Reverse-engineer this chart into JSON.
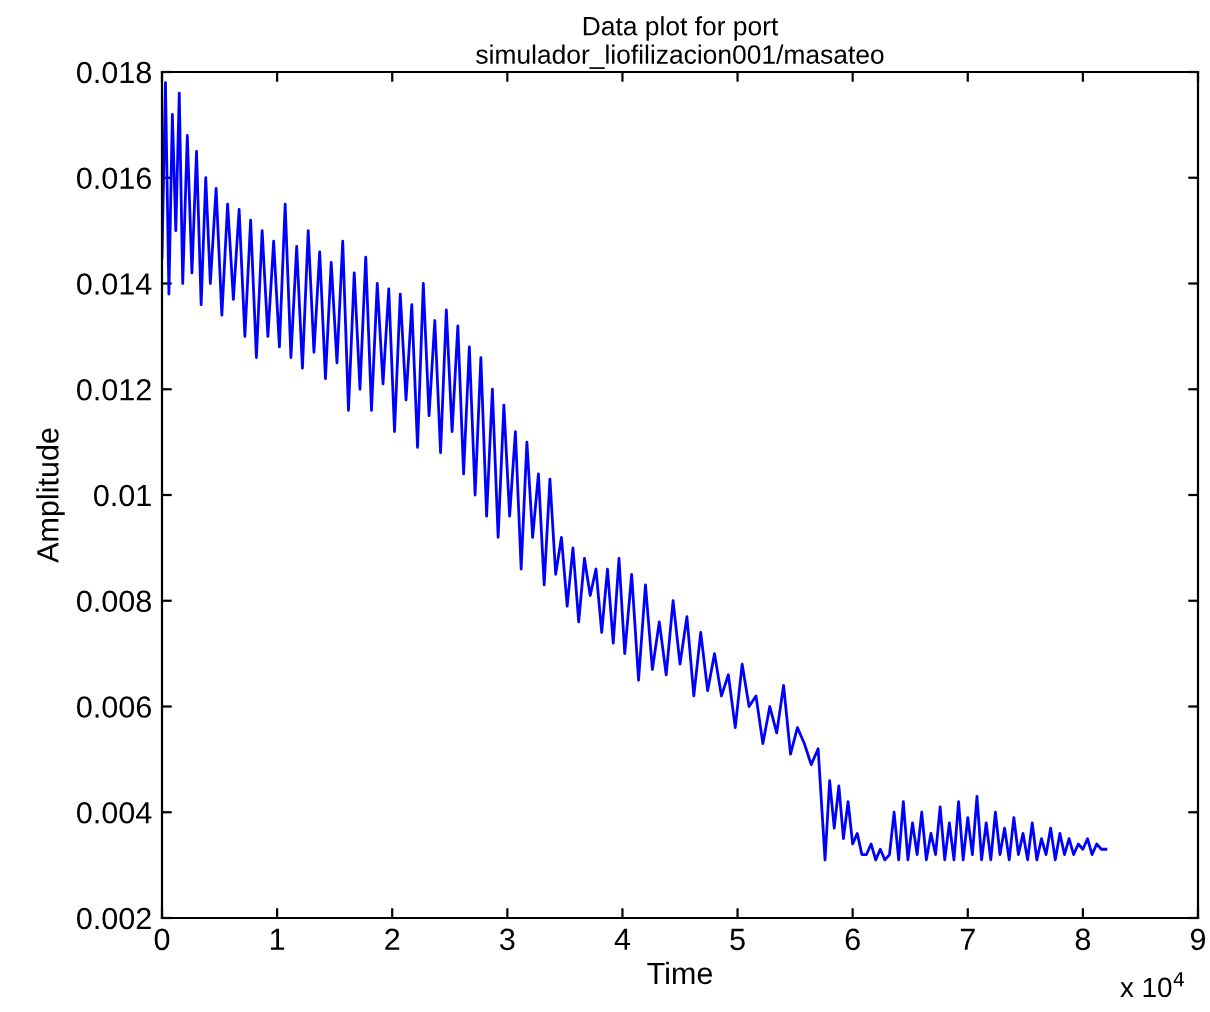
{
  "chart_data": {
    "type": "line",
    "title": "Data plot for port\nsimulador_liofilizacion001/masateo",
    "xlabel": "Time",
    "ylabel": "Amplitude",
    "annotations": [
      "x 10$^{4}$"
    ],
    "x": [
      0,
      0.03,
      0.06,
      0.09,
      0.12,
      0.15,
      0.18,
      0.22,
      0.26,
      0.3,
      0.34,
      0.38,
      0.42,
      0.47,
      0.52,
      0.57,
      0.62,
      0.67,
      0.72,
      0.77,
      0.82,
      0.87,
      0.92,
      0.97,
      1.02,
      1.07,
      1.12,
      1.17,
      1.22,
      1.27,
      1.32,
      1.37,
      1.42,
      1.47,
      1.52,
      1.57,
      1.62,
      1.67,
      1.72,
      1.77,
      1.82,
      1.87,
      1.92,
      1.97,
      2.02,
      2.07,
      2.12,
      2.17,
      2.22,
      2.27,
      2.32,
      2.37,
      2.42,
      2.47,
      2.52,
      2.57,
      2.62,
      2.67,
      2.72,
      2.77,
      2.82,
      2.87,
      2.92,
      2.97,
      3.02,
      3.07,
      3.12,
      3.17,
      3.22,
      3.27,
      3.32,
      3.37,
      3.42,
      3.47,
      3.52,
      3.57,
      3.62,
      3.67,
      3.72,
      3.77,
      3.82,
      3.87,
      3.92,
      3.97,
      4.02,
      4.08,
      4.14,
      4.2,
      4.26,
      4.32,
      4.38,
      4.44,
      4.5,
      4.56,
      4.62,
      4.68,
      4.74,
      4.8,
      4.86,
      4.92,
      4.98,
      5.04,
      5.1,
      5.16,
      5.22,
      5.28,
      5.34,
      5.4,
      5.46,
      5.52,
      5.58,
      5.64,
      5.7,
      5.76,
      5.8,
      5.84,
      5.88,
      5.92,
      5.96,
      6,
      6.04,
      6.08,
      6.12,
      6.16,
      6.2,
      6.24,
      6.28,
      6.32,
      6.36,
      6.4,
      6.44,
      6.48,
      6.52,
      6.56,
      6.6,
      6.64,
      6.68,
      6.72,
      6.76,
      6.8,
      6.84,
      6.88,
      6.92,
      6.96,
      7,
      7.04,
      7.08,
      7.12,
      7.16,
      7.2,
      7.24,
      7.28,
      7.32,
      7.36,
      7.4,
      7.44,
      7.48,
      7.52,
      7.56,
      7.6,
      7.64,
      7.68,
      7.72,
      7.76,
      7.8,
      7.84,
      7.88,
      7.92,
      7.96,
      8,
      8.04,
      8.08,
      8.12,
      8.16,
      8.2
    ],
    "series": [
      {
        "color": "#0000ff",
        "values": [
          0.0145,
          0.0178,
          0.0138,
          0.0172,
          0.015,
          0.0176,
          0.014,
          0.0168,
          0.0142,
          0.0165,
          0.0136,
          0.016,
          0.014,
          0.0158,
          0.0134,
          0.0155,
          0.0137,
          0.0154,
          0.013,
          0.0152,
          0.0126,
          0.015,
          0.013,
          0.0148,
          0.0128,
          0.0155,
          0.0126,
          0.0147,
          0.0124,
          0.015,
          0.0127,
          0.0146,
          0.0122,
          0.0144,
          0.0125,
          0.0148,
          0.0116,
          0.0142,
          0.012,
          0.0145,
          0.0116,
          0.014,
          0.0121,
          0.0139,
          0.0112,
          0.0138,
          0.0118,
          0.0136,
          0.0109,
          0.014,
          0.0115,
          0.0133,
          0.0108,
          0.0135,
          0.0112,
          0.0132,
          0.0104,
          0.0128,
          0.01,
          0.0126,
          0.0096,
          0.012,
          0.0092,
          0.0117,
          0.0096,
          0.0112,
          0.0086,
          0.011,
          0.0092,
          0.0104,
          0.0083,
          0.0103,
          0.0085,
          0.0092,
          0.0079,
          0.009,
          0.0076,
          0.0088,
          0.0081,
          0.0086,
          0.0074,
          0.0086,
          0.0072,
          0.0088,
          0.007,
          0.0085,
          0.0065,
          0.0083,
          0.0067,
          0.0076,
          0.0066,
          0.008,
          0.0068,
          0.0077,
          0.0062,
          0.0074,
          0.0063,
          0.007,
          0.0062,
          0.0066,
          0.0056,
          0.0068,
          0.006,
          0.0062,
          0.0053,
          0.006,
          0.0055,
          0.0064,
          0.0051,
          0.0056,
          0.0053,
          0.0049,
          0.0052,
          0.0031,
          0.0046,
          0.0037,
          0.0045,
          0.0035,
          0.0042,
          0.0034,
          0.0036,
          0.0032,
          0.0032,
          0.0034,
          0.0031,
          0.0033,
          0.0031,
          0.0032,
          0.004,
          0.0031,
          0.0042,
          0.0031,
          0.0038,
          0.0032,
          0.004,
          0.0031,
          0.0036,
          0.0032,
          0.0041,
          0.0031,
          0.0038,
          0.0031,
          0.0042,
          0.0031,
          0.0039,
          0.0032,
          0.0043,
          0.0031,
          0.0038,
          0.0031,
          0.004,
          0.0032,
          0.0037,
          0.0031,
          0.0039,
          0.0032,
          0.0036,
          0.0031,
          0.0038,
          0.0031,
          0.0035,
          0.0032,
          0.0037,
          0.0031,
          0.0036,
          0.0032,
          0.0035,
          0.0032,
          0.0034,
          0.0033,
          0.0035,
          0.0032,
          0.0034,
          0.0033,
          0.0033
        ]
      }
    ],
    "xlim": [
      0,
      9
    ],
    "ylim": [
      0.002,
      0.018
    ],
    "xticks": [
      0,
      1,
      2,
      3,
      4,
      5,
      6,
      7,
      8,
      9
    ],
    "yticks": [
      0.002,
      0.004,
      0.006,
      0.008,
      0.01,
      0.012,
      0.014,
      0.016,
      0.018
    ],
    "grid": false,
    "legend": false,
    "line_style": "solid",
    "marker": "none"
  }
}
